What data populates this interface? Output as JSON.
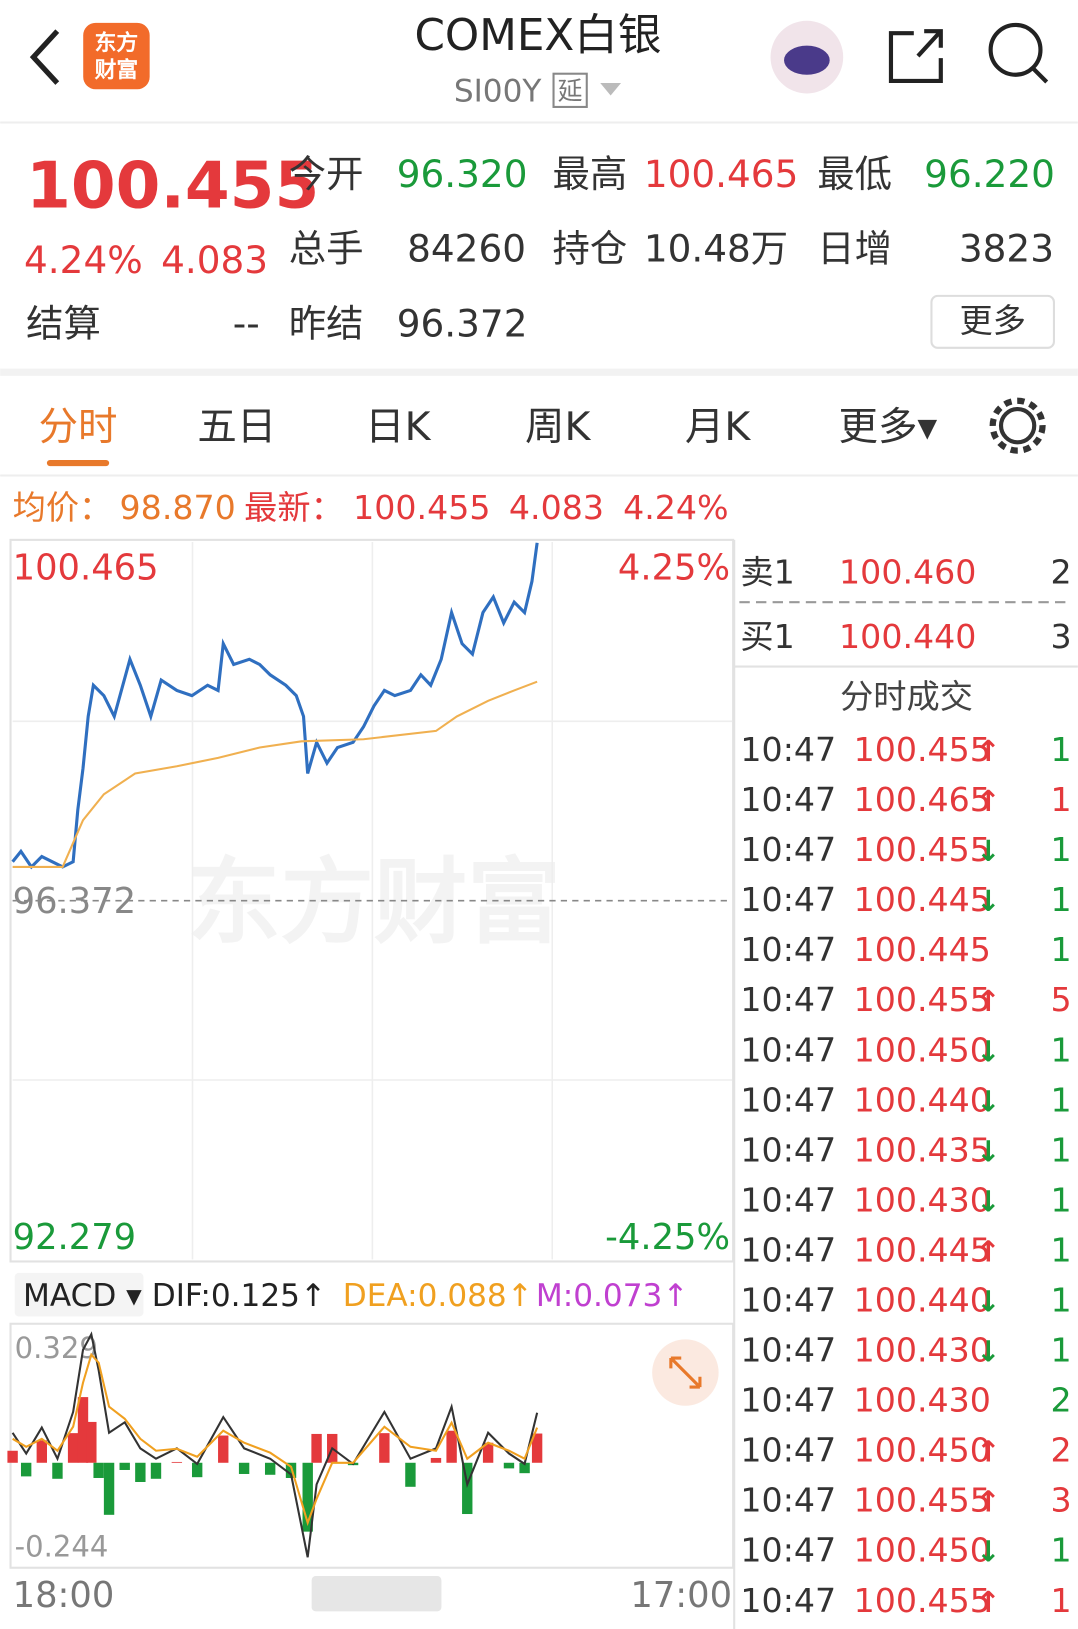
{
  "header": {
    "logo_top": "东方",
    "logo_bottom": "财富",
    "title": "COMEX白银",
    "code": "SI00Y",
    "badge": "延"
  },
  "quote": {
    "price": "100.455",
    "pct": "4.24%",
    "change": "4.083",
    "open_label": "今开",
    "open": "96.320",
    "high_label": "最高",
    "high": "100.465",
    "low_label": "最低",
    "low": "96.220",
    "volume_label": "总手",
    "volume": "84260",
    "oi_label": "持仓",
    "oi": "10.48万",
    "daily_label": "日增",
    "daily": "3823",
    "settle_label": "结算",
    "settle": "--",
    "prev_label": "昨结",
    "prev": "96.372",
    "more": "更多"
  },
  "tabs": [
    "分时",
    "五日",
    "日K",
    "周K",
    "月K",
    "更多▾"
  ],
  "info": {
    "avg_label": "均价：",
    "avg": "98.870",
    "last_label": "最新：",
    "last": "100.455",
    "change": "4.083",
    "pct": "4.24%"
  },
  "watermark": "东方财富",
  "price_chart": {
    "type": "line",
    "grid": true,
    "xlim": [
      0,
      1380
    ],
    "xticks": [
      {
        "value": 0,
        "label": "18:00"
      },
      {
        "value": 1380,
        "label": "17:00"
      }
    ],
    "ylim": [
      92.279,
      100.465
    ],
    "yticks": [
      100.465,
      96.372,
      92.279
    ],
    "y2lim": [
      -4.25,
      4.25
    ],
    "y2ticks": [
      {
        "value": 4.25,
        "label": "4.25%"
      },
      {
        "value": -4.25,
        "label": "-4.25%"
      }
    ],
    "series": [
      {
        "color": "#2f6fc0",
        "x": [
          0,
          16,
          36,
          56,
          96,
          116,
          125,
          135,
          145,
          155,
          175,
          195,
          225,
          245,
          265,
          285,
          315,
          344,
          374,
          394,
          404,
          424,
          454,
          474,
          494,
          524,
          544,
          558,
          566,
          583,
          603,
          623,
          653,
          673,
          693,
          713,
          733,
          763,
          783,
          802,
          822,
          842,
          862,
          882,
          902,
          922,
          942,
          962,
          982,
          996,
          1006
        ],
        "values": [
          96.816,
          96.935,
          96.757,
          96.875,
          96.757,
          96.816,
          97.408,
          97.882,
          98.475,
          98.83,
          98.712,
          98.475,
          99.126,
          98.83,
          98.475,
          98.889,
          98.771,
          98.712,
          98.83,
          98.771,
          99.304,
          99.067,
          99.126,
          99.067,
          98.949,
          98.83,
          98.712,
          98.475,
          97.823,
          98.179,
          97.942,
          98.119,
          98.179,
          98.356,
          98.593,
          98.771,
          98.712,
          98.771,
          98.949,
          98.83,
          99.126,
          99.659,
          99.304,
          99.186,
          99.659,
          99.837,
          99.541,
          99.778,
          99.659,
          100.015,
          100.455
        ]
      },
      {
        "color": "#f0b050",
        "x": [
          0,
          96,
          135,
          175,
          235,
          315,
          394,
          474,
          554,
          673,
          812,
          852,
          912,
          962,
          1006
        ],
        "values": [
          96.757,
          96.757,
          97.29,
          97.586,
          97.823,
          97.906,
          98.001,
          98.119,
          98.19,
          98.214,
          98.309,
          98.475,
          98.652,
          98.771,
          98.87
        ]
      }
    ]
  },
  "macd_chart": {
    "type": "macd",
    "label": "MACD ▾",
    "dif_label": "DIF:0.125↑",
    "dea_label": "DEA:0.088↑",
    "m_label": "M:0.073↑",
    "ylim": [
      -0.244,
      0.329
    ],
    "yticks": [
      0.329,
      -0.244
    ],
    "x": [
      0,
      26,
      56,
      86,
      116,
      135,
      151,
      165,
      185,
      215,
      245,
      275,
      315,
      354,
      404,
      444,
      494,
      534,
      566,
      583,
      613,
      653,
      713,
      763,
      812,
      842,
      872,
      912,
      952,
      982,
      1006
    ],
    "series": [
      {
        "color": "#333333",
        "values": [
          0.075,
          0.023,
          0.088,
          0.01,
          0.127,
          0.282,
          0.321,
          0.231,
          0.075,
          0.101,
          0.036,
          0.01,
          0.036,
          -0.003,
          0.114,
          0.036,
          0.01,
          -0.029,
          -0.236,
          -0.054,
          0.036,
          -0.003,
          0.127,
          0.01,
          0.036,
          0.14,
          -0.054,
          0.075,
          0.023,
          -0.003,
          0.125
        ]
      },
      {
        "color": "#f0a020",
        "values": [
          0.06,
          0.04,
          0.06,
          0.03,
          0.09,
          0.2,
          0.27,
          0.25,
          0.14,
          0.11,
          0.06,
          0.03,
          0.035,
          0.015,
          0.08,
          0.05,
          0.025,
          -0.01,
          -0.15,
          -0.09,
          0.0,
          0.0,
          0.09,
          0.04,
          0.03,
          0.1,
          0.01,
          0.05,
          0.03,
          0.01,
          0.088
        ]
      }
    ],
    "histogram": {
      "up_color": "#e4393c",
      "down_color": "#1a9a3a",
      "values": [
        0.03,
        -0.034,
        0.056,
        -0.04,
        0.074,
        0.164,
        0.102,
        -0.038,
        -0.13,
        -0.018,
        -0.048,
        -0.04,
        0.002,
        -0.036,
        0.068,
        -0.028,
        -0.03,
        -0.038,
        -0.172,
        0.072,
        0.072,
        -0.006,
        0.074,
        -0.06,
        0.012,
        0.08,
        -0.128,
        0.05,
        -0.014,
        -0.026,
        0.073
      ]
    }
  },
  "order_book": {
    "ask_label": "卖1",
    "ask": "100.460",
    "ask_vol": "2",
    "bid_label": "买1",
    "bid": "100.440",
    "bid_vol": "3"
  },
  "trades": {
    "title": "分时成交",
    "rows": [
      {
        "time": "10:47",
        "price": "100.455",
        "arrow": "↑",
        "vol": "1",
        "vol_color": "#1a9a3a"
      },
      {
        "time": "10:47",
        "price": "100.465",
        "arrow": "↑",
        "vol": "1",
        "vol_color": "#e4393c"
      },
      {
        "time": "10:47",
        "price": "100.455",
        "arrow": "↓",
        "vol": "1",
        "vol_color": "#1a9a3a"
      },
      {
        "time": "10:47",
        "price": "100.445",
        "arrow": "↓",
        "vol": "1",
        "vol_color": "#1a9a3a"
      },
      {
        "time": "10:47",
        "price": "100.445",
        "arrow": "",
        "vol": "1",
        "vol_color": "#1a9a3a"
      },
      {
        "time": "10:47",
        "price": "100.455",
        "arrow": "↑",
        "vol": "5",
        "vol_color": "#e4393c"
      },
      {
        "time": "10:47",
        "price": "100.450",
        "arrow": "↓",
        "vol": "1",
        "vol_color": "#1a9a3a"
      },
      {
        "time": "10:47",
        "price": "100.440",
        "arrow": "↓",
        "vol": "1",
        "vol_color": "#1a9a3a"
      },
      {
        "time": "10:47",
        "price": "100.435",
        "arrow": "↓",
        "vol": "1",
        "vol_color": "#1a9a3a"
      },
      {
        "time": "10:47",
        "price": "100.430",
        "arrow": "↓",
        "vol": "1",
        "vol_color": "#1a9a3a"
      },
      {
        "time": "10:47",
        "price": "100.445",
        "arrow": "↑",
        "vol": "1",
        "vol_color": "#1a9a3a"
      },
      {
        "time": "10:47",
        "price": "100.440",
        "arrow": "↓",
        "vol": "1",
        "vol_color": "#1a9a3a"
      },
      {
        "time": "10:47",
        "price": "100.430",
        "arrow": "↓",
        "vol": "1",
        "vol_color": "#1a9a3a"
      },
      {
        "time": "10:47",
        "price": "100.430",
        "arrow": "",
        "vol": "2",
        "vol_color": "#1a9a3a"
      },
      {
        "time": "10:47",
        "price": "100.450",
        "arrow": "↑",
        "vol": "2",
        "vol_color": "#e4393c"
      },
      {
        "time": "10:47",
        "price": "100.455",
        "arrow": "↑",
        "vol": "3",
        "vol_color": "#e4393c"
      },
      {
        "time": "10:47",
        "price": "100.450",
        "arrow": "↓",
        "vol": "1",
        "vol_color": "#1a9a3a"
      },
      {
        "time": "10:47",
        "price": "100.455",
        "arrow": "↑",
        "vol": "1",
        "vol_color": "#e4393c"
      }
    ]
  }
}
